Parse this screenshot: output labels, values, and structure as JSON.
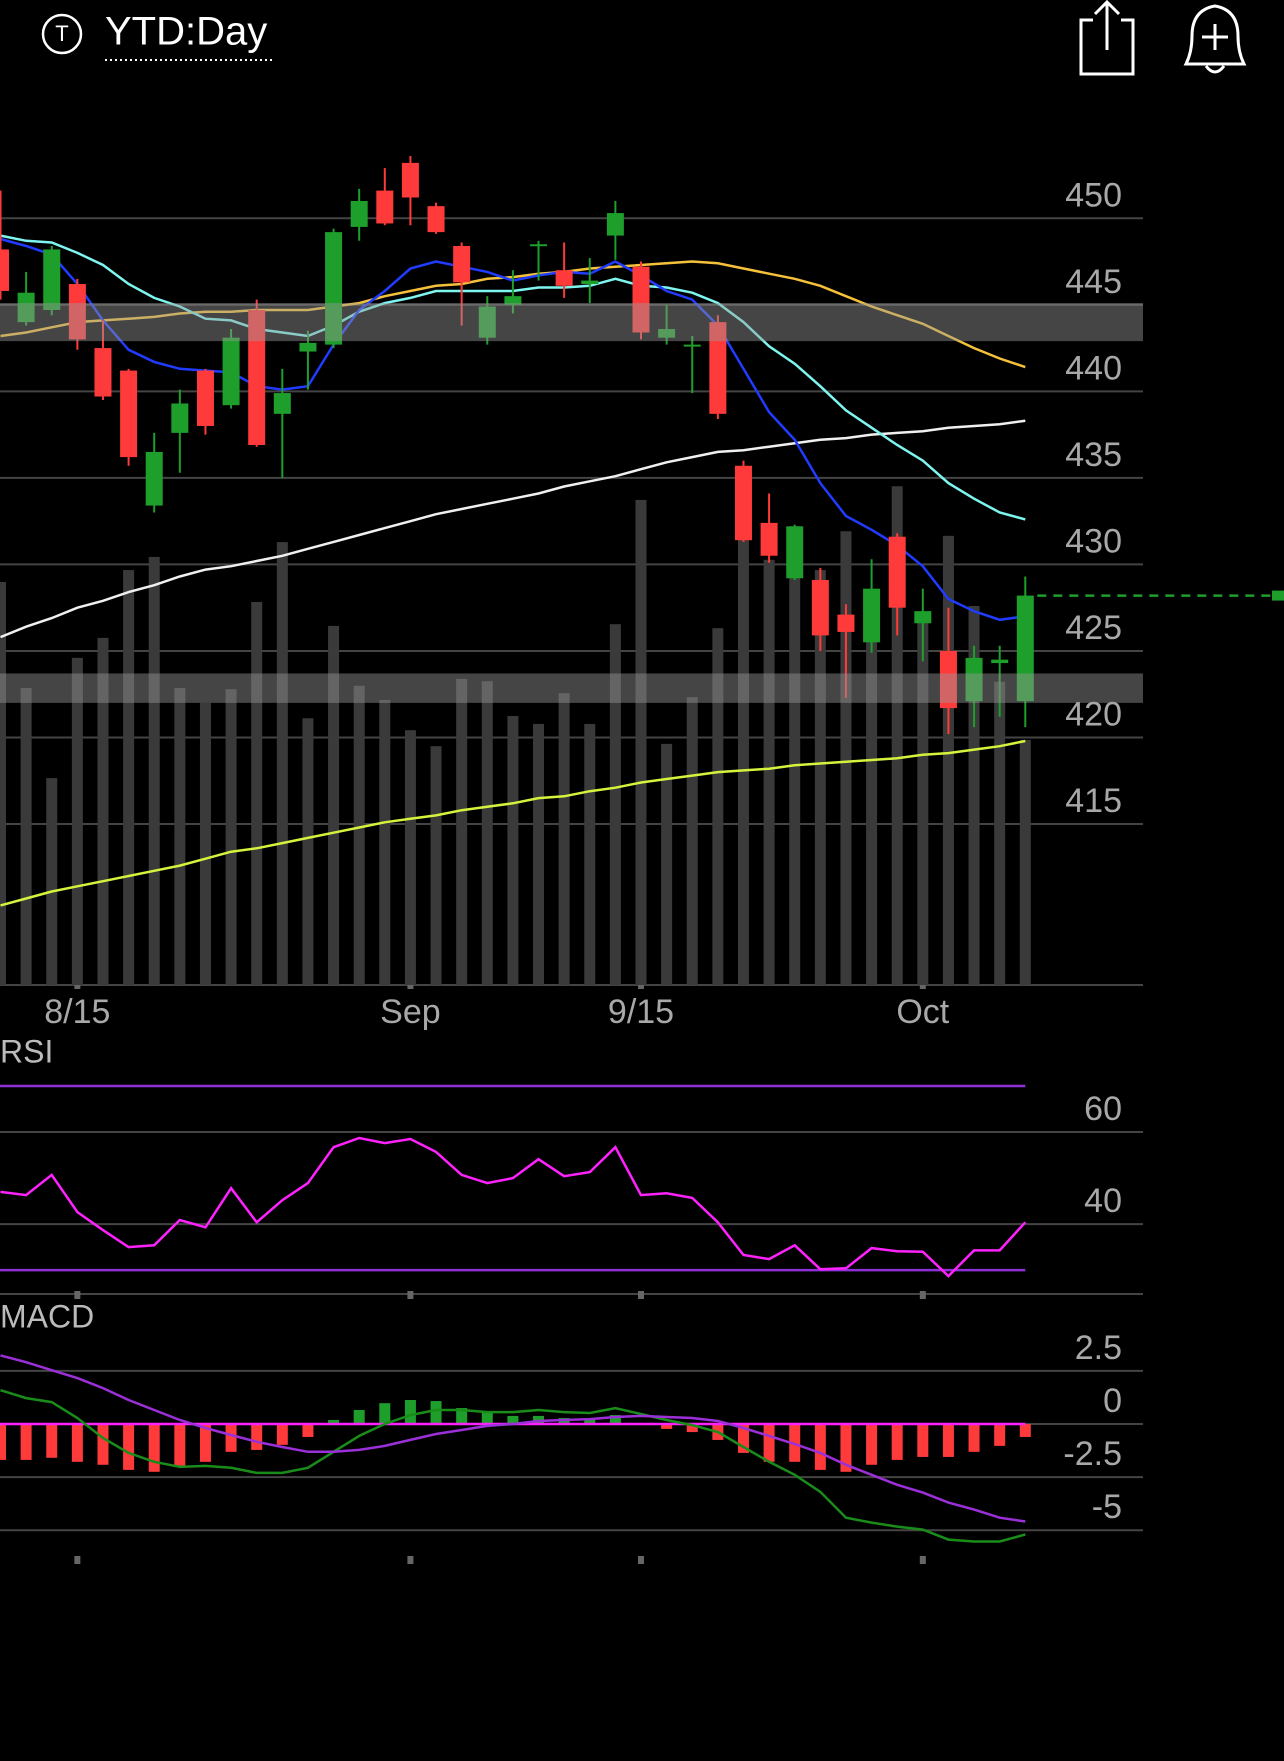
{
  "header": {
    "icon_letter": "T",
    "title": "YTD:Day"
  },
  "chart_data": [
    {
      "type": "candlestick",
      "categories": [
        null,
        null,
        null,
        "8/15",
        null,
        null,
        null,
        null,
        null,
        null,
        null,
        null,
        null,
        null,
        null,
        null,
        "Sep",
        null,
        null,
        null,
        null,
        null,
        null,
        null,
        null,
        "9/15",
        null,
        null,
        null,
        null,
        null,
        null,
        null,
        null,
        null,
        null,
        "Oct",
        null,
        null,
        null,
        null
      ],
      "open": [
        448.2,
        444.0,
        444.7,
        446.2,
        442.5,
        441.2,
        433.4,
        437.6,
        441.2,
        439.2,
        444.7,
        438.7,
        442.3,
        442.7,
        449.5,
        451.6,
        453.2,
        450.7,
        448.4,
        443.1,
        445.0,
        448.4,
        447.0,
        446.2,
        449.0,
        447.2,
        443.1,
        442.6,
        444.0,
        435.7,
        432.4,
        429.2,
        429.1,
        427.1,
        425.5,
        431.6,
        426.6,
        425.0,
        422.1,
        424.3,
        422.1
      ],
      "high": [
        451.6,
        446.9,
        448.4,
        446.5,
        444.1,
        441.3,
        437.6,
        440.1,
        441.3,
        443.6,
        445.3,
        441.3,
        443.5,
        449.4,
        451.7,
        452.9,
        453.6,
        450.9,
        448.6,
        445.5,
        447.0,
        448.7,
        448.6,
        447.7,
        451.0,
        447.5,
        445.0,
        443.2,
        444.4,
        436.0,
        434.1,
        432.3,
        429.8,
        427.7,
        430.3,
        431.8,
        428.6,
        427.5,
        425.3,
        425.3,
        429.3
      ],
      "low": [
        445.3,
        443.8,
        444.4,
        442.4,
        439.5,
        435.7,
        433.0,
        435.3,
        437.5,
        439.0,
        436.8,
        435.0,
        440.1,
        442.5,
        448.7,
        449.6,
        449.6,
        449.1,
        443.8,
        442.7,
        444.5,
        446.4,
        445.4,
        445.1,
        447.6,
        443.0,
        442.7,
        439.9,
        438.4,
        431.3,
        430.1,
        429.1,
        425.0,
        422.3,
        424.9,
        425.9,
        424.4,
        420.2,
        420.6,
        421.2,
        420.6
      ],
      "close": [
        445.8,
        445.7,
        448.2,
        443.0,
        439.7,
        436.2,
        436.5,
        439.3,
        438.0,
        443.1,
        436.9,
        439.9,
        442.8,
        449.2,
        451.0,
        449.7,
        451.2,
        449.2,
        446.3,
        444.9,
        445.5,
        448.5,
        446.1,
        446.4,
        450.3,
        443.4,
        443.6,
        442.7,
        438.7,
        431.4,
        430.5,
        432.2,
        425.9,
        426.1,
        428.6,
        427.5,
        427.3,
        421.7,
        424.6,
        424.5,
        428.2
      ],
      "up_color": "#1e9e2b",
      "down_color": "#ff3a3a",
      "ylim": [
        405.7,
        455.1
      ],
      "yticks": [
        415,
        420,
        425,
        430,
        435,
        440,
        445,
        450
      ],
      "grid": true,
      "bands": [
        [
          442.9,
          445.1
        ],
        [
          422.0,
          423.7
        ]
      ],
      "band_color": "#9a9a9a",
      "volume": {
        "color": "#3a3a3a",
        "ylim": [
          0,
          150
        ],
        "values": [
          70.7,
          52.1,
          36.3,
          57.4,
          60.9,
          72.8,
          75.1,
          52.1,
          49.5,
          51.9,
          67.2,
          77.7,
          46.8,
          63.0,
          52.5,
          50.0,
          44.7,
          41.9,
          53.7,
          53.3,
          47.2,
          45.8,
          51.2,
          45.8,
          63.3,
          85.1,
          42.3,
          50.5,
          62.6,
          78.1,
          74.6,
          80.5,
          72.8,
          79.6,
          68.2,
          87.5,
          64.0,
          78.8,
          66.5,
          53.2,
          43.0
        ]
      },
      "series": [
        {
          "color": "#f0f0f0",
          "values": [
            425.8,
            426.4,
            426.9,
            427.5,
            427.9,
            428.4,
            428.8,
            429.3,
            429.7,
            429.9,
            430.2,
            430.5,
            430.9,
            431.3,
            431.7,
            432.1,
            432.5,
            432.9,
            433.2,
            433.5,
            433.8,
            434.1,
            434.5,
            434.8,
            435.1,
            435.5,
            435.9,
            436.2,
            436.5,
            436.6,
            436.8,
            437.0,
            437.2,
            437.3,
            437.5,
            437.6,
            437.7,
            437.9,
            438.0,
            438.1,
            438.3
          ]
        },
        {
          "color": "#d6f23c",
          "values": [
            410.3,
            410.7,
            411.1,
            411.4,
            411.7,
            412.0,
            412.3,
            412.6,
            413.0,
            413.4,
            413.6,
            413.9,
            414.2,
            414.5,
            414.8,
            415.1,
            415.3,
            415.5,
            415.8,
            416.0,
            416.2,
            416.5,
            416.6,
            416.9,
            417.1,
            417.4,
            417.6,
            417.8,
            418.0,
            418.1,
            418.2,
            418.4,
            418.5,
            418.6,
            418.7,
            418.8,
            419.0,
            419.1,
            419.3,
            419.5,
            419.8
          ]
        },
        {
          "color": "#f5c13a",
          "values": [
            443.2,
            443.4,
            443.7,
            444.0,
            444.1,
            444.2,
            444.3,
            444.5,
            444.6,
            444.6,
            444.7,
            444.7,
            444.7,
            444.9,
            445.1,
            445.5,
            445.8,
            446.1,
            446.2,
            446.5,
            446.6,
            446.8,
            446.9,
            447.1,
            447.2,
            447.3,
            447.4,
            447.5,
            447.4,
            447.1,
            446.8,
            446.5,
            446.1,
            445.5,
            444.9,
            444.4,
            443.9,
            443.2,
            442.5,
            441.9,
            441.4
          ]
        },
        {
          "color": "#7ff5ef",
          "values": [
            449.0,
            448.7,
            448.6,
            448.0,
            447.3,
            446.2,
            445.4,
            444.9,
            444.2,
            444.1,
            443.6,
            443.4,
            443.2,
            443.8,
            444.6,
            445.1,
            445.4,
            445.8,
            445.8,
            445.8,
            445.8,
            446.0,
            446.0,
            446.1,
            446.5,
            446.1,
            446.0,
            445.7,
            445.1,
            444.0,
            442.6,
            441.6,
            440.3,
            438.9,
            437.9,
            436.9,
            436.0,
            434.7,
            433.8,
            433.0,
            432.6
          ]
        },
        {
          "color": "#1f3cff",
          "values": [
            448.8,
            448.4,
            447.9,
            446.2,
            444.1,
            442.4,
            441.7,
            441.3,
            441.2,
            441.1,
            440.3,
            440.1,
            440.3,
            442.7,
            444.7,
            445.8,
            447.1,
            447.5,
            447.2,
            446.9,
            446.4,
            446.7,
            446.9,
            446.8,
            447.5,
            446.7,
            445.8,
            445.3,
            443.8,
            441.3,
            438.8,
            437.2,
            434.7,
            432.8,
            432.0,
            431.1,
            429.9,
            428.0,
            427.3,
            426.8,
            427.0
          ]
        }
      ]
    },
    {
      "type": "line",
      "title": "RSI",
      "ylim": [
        24.6,
        80
      ],
      "yticks": [
        40,
        60
      ],
      "levels": [
        30,
        70
      ],
      "level_color": "#8e2fd8",
      "series": [
        {
          "color": "#ff22ff",
          "values": [
            47.0,
            46.3,
            50.7,
            42.6,
            38.7,
            35.0,
            35.4,
            40.9,
            39.3,
            47.8,
            40.4,
            45.2,
            48.9,
            56.7,
            58.7,
            57.6,
            58.5,
            55.7,
            50.7,
            48.9,
            50.0,
            54.1,
            50.4,
            51.3,
            56.7,
            46.3,
            46.7,
            45.7,
            40.4,
            33.3,
            32.4,
            35.4,
            30.2,
            30.4,
            34.8,
            34.1,
            34.0,
            28.7,
            34.3,
            34.3,
            40.4
          ]
        }
      ]
    },
    {
      "type": "macd",
      "title": "MACD",
      "ylim": [
        -6.4,
        5.6
      ],
      "yticks": [
        2.5,
        0,
        -2.5,
        -5
      ],
      "histogram": {
        "up_color": "#1e9e2b",
        "down_color": "#ff3a3a",
        "values": [
          -1.69,
          -1.69,
          -1.59,
          -1.78,
          -1.92,
          -2.16,
          -2.25,
          -1.97,
          -1.78,
          -1.31,
          -1.22,
          -0.98,
          -0.61,
          0.19,
          0.66,
          0.98,
          1.13,
          1.08,
          0.75,
          0.56,
          0.38,
          0.38,
          0.28,
          0.19,
          0.42,
          0,
          -0.23,
          -0.38,
          -0.75,
          -1.36,
          -1.78,
          -1.78,
          -2.16,
          -2.25,
          -1.92,
          -1.69,
          -1.55,
          -1.55,
          -1.31,
          -1.03,
          -0.61
        ]
      },
      "zero_color": "#ff22ff",
      "series": [
        {
          "color": "#1a8c1a",
          "values": [
            1.59,
            1.22,
            1.03,
            0.28,
            -0.66,
            -1.36,
            -1.78,
            -2.02,
            -1.97,
            -2.06,
            -2.3,
            -2.3,
            -2.06,
            -1.31,
            -0.56,
            0,
            0.42,
            0.66,
            0.66,
            0.56,
            0.56,
            0.66,
            0.56,
            0.52,
            0.75,
            0.47,
            0.19,
            -0.05,
            -0.38,
            -1.08,
            -1.78,
            -2.39,
            -3.19,
            -4.41,
            -4.64,
            -4.83,
            -4.97,
            -5.44,
            -5.53,
            -5.53,
            -5.2
          ]
        },
        {
          "color": "#9b30d9",
          "values": [
            3.23,
            2.91,
            2.53,
            2.16,
            1.69,
            1.13,
            0.66,
            0.19,
            -0.19,
            -0.52,
            -0.84,
            -1.08,
            -1.31,
            -1.31,
            -1.22,
            -1.03,
            -0.75,
            -0.47,
            -0.28,
            -0.09,
            0,
            0.14,
            0.19,
            0.23,
            0.33,
            0.38,
            0.33,
            0.28,
            0.14,
            -0.19,
            -0.56,
            -0.94,
            -1.36,
            -1.92,
            -2.39,
            -2.86,
            -3.23,
            -3.7,
            -4.03,
            -4.41,
            -4.59
          ]
        }
      ]
    }
  ]
}
